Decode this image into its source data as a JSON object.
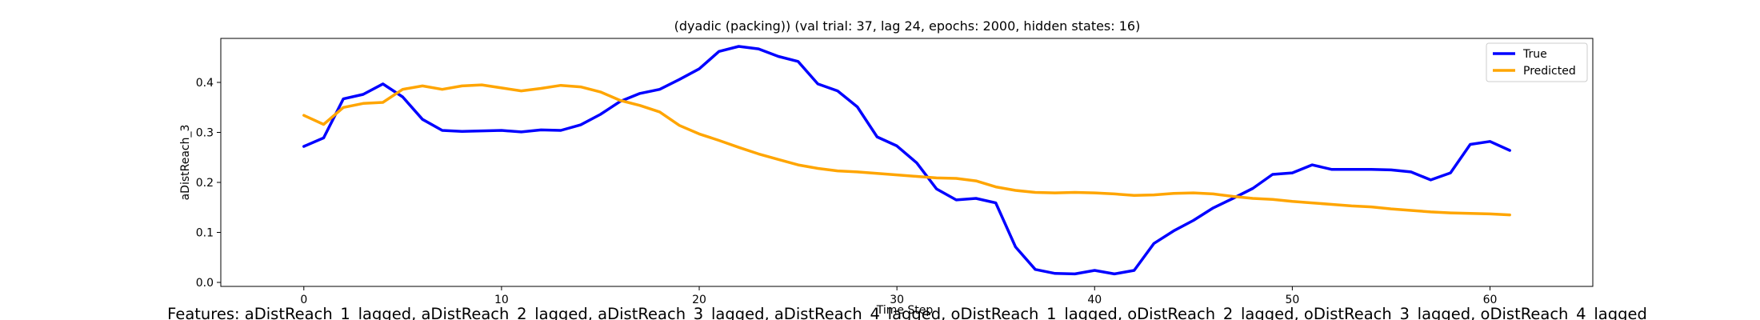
{
  "chart_data": {
    "type": "line",
    "title": "(dyadic (packing)) (val trial: 37, lag 24, epochs: 2000, hidden states: 16)",
    "xlabel": "Time Step",
    "ylabel": "aDistReach_3",
    "footer": "Features: aDistReach_1_lagged, aDistReach_2_lagged, aDistReach_3_lagged, aDistReach_4_lagged, oDistReach_1_lagged, oDistReach_2_lagged, oDistReach_3_lagged, oDistReach_4_lagged",
    "xlim": [
      -4.2,
      65.2
    ],
    "ylim": [
      -0.008,
      0.488
    ],
    "x_ticks": [
      0,
      10,
      20,
      30,
      40,
      50,
      60
    ],
    "y_ticks": [
      0.0,
      0.1,
      0.2,
      0.3,
      0.4
    ],
    "grid": false,
    "legend_position": "top-right",
    "x": [
      0,
      1,
      2,
      3,
      4,
      5,
      6,
      7,
      8,
      9,
      10,
      11,
      12,
      13,
      14,
      15,
      16,
      17,
      18,
      19,
      20,
      21,
      22,
      23,
      24,
      25,
      26,
      27,
      28,
      29,
      30,
      31,
      32,
      33,
      34,
      35,
      36,
      37,
      38,
      39,
      40,
      41,
      42,
      43,
      44,
      45,
      46,
      47,
      48,
      49,
      50,
      51,
      52,
      53,
      54,
      55,
      56,
      57,
      58,
      59,
      60,
      61
    ],
    "series": [
      {
        "name": "True",
        "color": "#0000ff",
        "values": [
          0.272,
          0.289,
          0.367,
          0.376,
          0.397,
          0.371,
          0.326,
          0.304,
          0.302,
          0.303,
          0.304,
          0.301,
          0.305,
          0.304,
          0.315,
          0.336,
          0.362,
          0.378,
          0.386,
          0.406,
          0.427,
          0.462,
          0.472,
          0.467,
          0.452,
          0.442,
          0.397,
          0.383,
          0.351,
          0.291,
          0.273,
          0.239,
          0.187,
          0.165,
          0.168,
          0.159,
          0.071,
          0.026,
          0.018,
          0.017,
          0.024,
          0.017,
          0.024,
          0.078,
          0.103,
          0.124,
          0.149,
          0.168,
          0.188,
          0.216,
          0.219,
          0.235,
          0.226,
          0.226,
          0.226,
          0.225,
          0.221,
          0.205,
          0.219,
          0.276,
          0.282,
          0.264
        ]
      },
      {
        "name": "Predicted",
        "color": "#ffa500",
        "values": [
          0.334,
          0.316,
          0.35,
          0.358,
          0.36,
          0.386,
          0.393,
          0.386,
          0.393,
          0.395,
          0.389,
          0.383,
          0.388,
          0.394,
          0.391,
          0.381,
          0.364,
          0.354,
          0.341,
          0.314,
          0.297,
          0.284,
          0.27,
          0.257,
          0.246,
          0.235,
          0.228,
          0.223,
          0.221,
          0.218,
          0.215,
          0.212,
          0.209,
          0.208,
          0.203,
          0.191,
          0.184,
          0.18,
          0.179,
          0.18,
          0.179,
          0.177,
          0.174,
          0.175,
          0.178,
          0.179,
          0.177,
          0.172,
          0.168,
          0.166,
          0.162,
          0.159,
          0.156,
          0.153,
          0.151,
          0.147,
          0.144,
          0.141,
          0.139,
          0.138,
          0.137,
          0.135
        ]
      }
    ]
  }
}
